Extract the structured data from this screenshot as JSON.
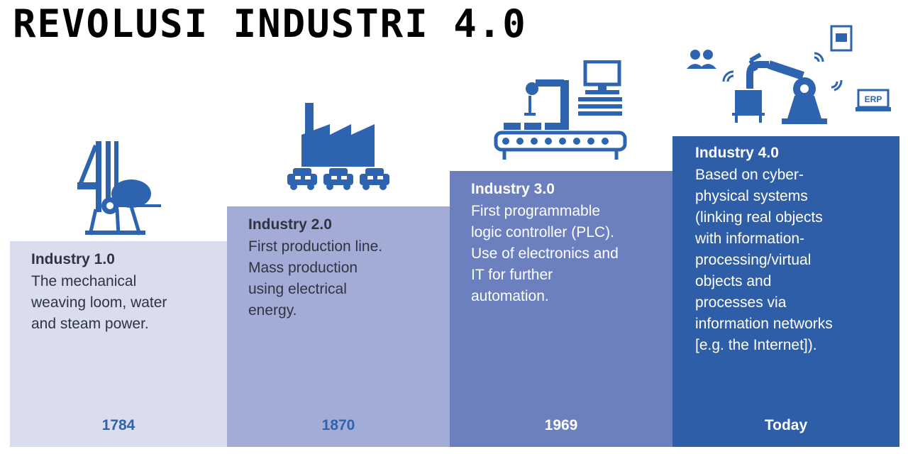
{
  "title": "REVOLUSI INDUSTRI 4.0",
  "stages": [
    {
      "heading": "Industry 1.0",
      "description": "The mechanical\nweaving loom, water\nand steam power.",
      "year": "1784",
      "icon": "loom-icon"
    },
    {
      "heading": "Industry 2.0",
      "description": "First production line.\nMass production\nusing electrical\nenergy.",
      "year": "1870",
      "icon": "factory-icon"
    },
    {
      "heading": "Industry 3.0",
      "description": "First programmable\nlogic controller (PLC).\nUse of electronics and\nIT for further\nautomation.",
      "year": "1969",
      "icon": "robot-arm-icon"
    },
    {
      "heading": "Industry 4.0",
      "description": "Based on cyber-\nphysical systems\n(linking real objects\nwith information-\nprocessing/virtual\nobjects and\nprocesses via\ninformation networks\n[e.g. the Internet]).",
      "year": "Today",
      "icon": "cyber-physical-icon"
    }
  ],
  "icon_labels": {
    "erp": "ERP"
  },
  "colors": {
    "step1": "#d9ddee",
    "step2": "#a2acd6",
    "step3": "#6c7fbf",
    "step4": "#2f5ea9",
    "accent": "#2e63b0"
  }
}
